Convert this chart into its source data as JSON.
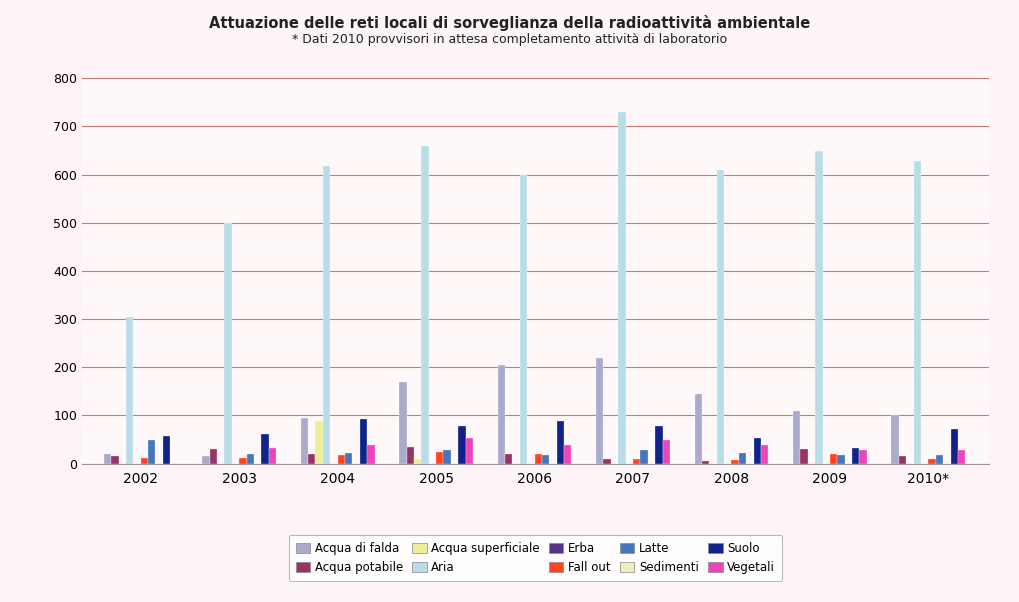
{
  "title": "Attuazione delle reti locali di sorveglianza della radioattività ambientale",
  "subtitle": "* Dati 2010 provvisori in attesa completamento attività di laboratorio",
  "years": [
    "2002",
    "2003",
    "2004",
    "2005",
    "2006",
    "2007",
    "2008",
    "2009",
    "2010*"
  ],
  "series_order": [
    "Acqua di falda",
    "Acqua potabile",
    "Acqua superficiale",
    "Aria",
    "Erba",
    "Fall out",
    "Latte",
    "Sedimenti",
    "Suolo",
    "Vegetali"
  ],
  "series": {
    "Acqua di falda": [
      20,
      15,
      95,
      170,
      205,
      220,
      145,
      110,
      100
    ],
    "Acqua potabile": [
      15,
      30,
      20,
      35,
      20,
      10,
      5,
      30,
      15
    ],
    "Acqua superficiale": [
      0,
      0,
      88,
      10,
      0,
      0,
      0,
      0,
      0
    ],
    "Aria": [
      305,
      500,
      618,
      660,
      600,
      730,
      610,
      648,
      628
    ],
    "Erba": [
      0,
      0,
      0,
      0,
      0,
      0,
      0,
      0,
      0
    ],
    "Fall out": [
      12,
      12,
      18,
      25,
      20,
      10,
      8,
      20,
      10
    ],
    "Latte": [
      48,
      20,
      22,
      28,
      18,
      28,
      22,
      18,
      18
    ],
    "Sedimenti": [
      0,
      0,
      0,
      0,
      0,
      0,
      0,
      0,
      0
    ],
    "Suolo": [
      58,
      62,
      93,
      78,
      88,
      78,
      52,
      33,
      72
    ],
    "Vegetali": [
      0,
      32,
      38,
      52,
      38,
      48,
      38,
      28,
      28
    ]
  },
  "colors": {
    "Acqua di falda": "#aaaacc",
    "Acqua potabile": "#993366",
    "Acqua superficiale": "#eeee99",
    "Aria": "#b8dde8",
    "Erba": "#553388",
    "Fall out": "#ff4422",
    "Latte": "#4477bb",
    "Sedimenti": "#eeeebb",
    "Suolo": "#112288",
    "Vegetali": "#ee44bb"
  },
  "ylim": [
    0,
    800
  ],
  "yticks": [
    0,
    100,
    200,
    300,
    400,
    500,
    600,
    700,
    800
  ],
  "background_color": "#fdf5f5",
  "plot_bg_color": "#fff8f8",
  "grid_color": "#cc7777",
  "legend_row1": [
    "Acqua di falda",
    "Acqua potabile",
    "Acqua superficiale",
    "Aria",
    "Erba"
  ],
  "legend_row2": [
    "Fall out",
    "Latte",
    "Sedimenti",
    "Suolo",
    "Vegetali"
  ]
}
